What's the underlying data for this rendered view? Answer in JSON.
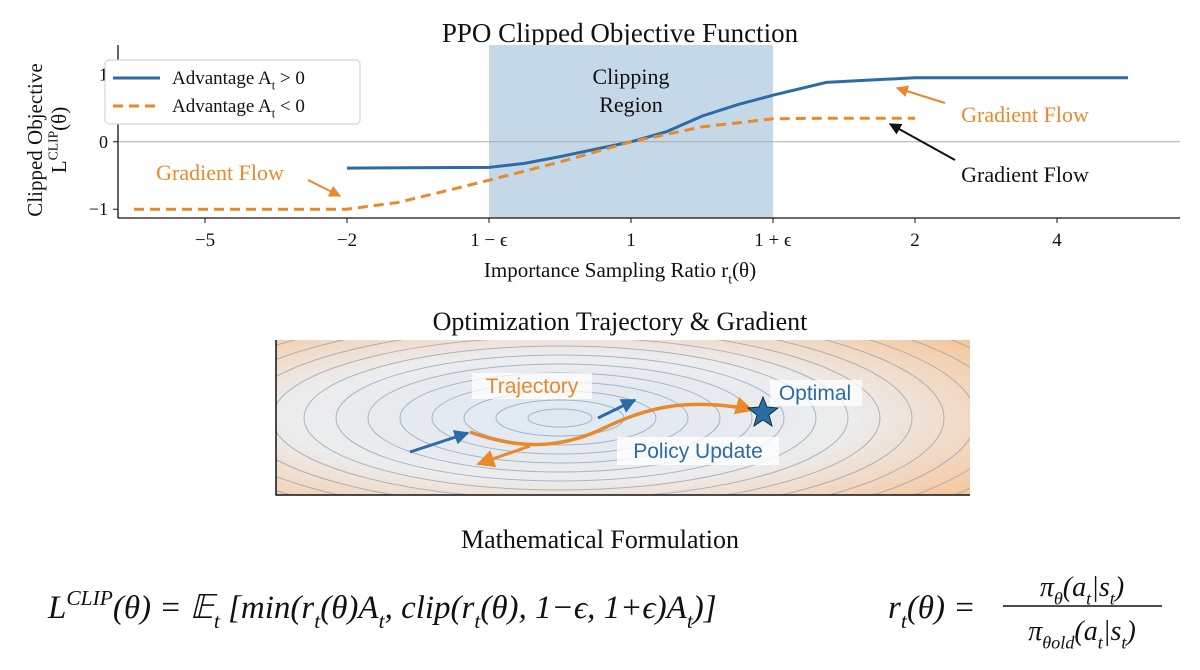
{
  "chart_data": {
    "type": "line",
    "title": "PPO Clipped Objective Function",
    "ylabel": [
      [
        {
          "text": "Clipped Objective"
        }
      ],
      [
        {
          "text": "L"
        },
        {
          "sup": "CLIP"
        },
        {
          "text": "(θ)"
        }
      ]
    ],
    "xlabel": [
      {
        "text": "Importance Sampling Ratio r"
      },
      {
        "sub": "t"
      },
      {
        "text": "(θ)"
      }
    ],
    "xlim": [
      -6.5,
      5
    ],
    "xticks": [
      {
        "value": -5,
        "label": "−5"
      },
      {
        "value": -2,
        "label": "−2"
      },
      {
        "value": 0.8,
        "label": "1 − ϵ"
      },
      1,
      {
        "value": 1.2,
        "label": "1 + ϵ"
      },
      2,
      4
    ],
    "ylim": [
      -1.13,
      1.39
    ],
    "yticks": [
      {
        "value": -1,
        "label": "−1"
      },
      0,
      1
    ],
    "axhline": 0,
    "shaded_region": {
      "xlim": [
        0.8,
        1.2
      ],
      "label": [
        "Clipping",
        "Region"
      ],
      "color": "#c5d8e8"
    },
    "legend": "upper left",
    "series": [
      {
        "name": [
          {
            "text": "Advantage A"
          },
          {
            "sub": "t"
          },
          {
            "text": " > 0"
          }
        ],
        "color": "#2b6ca6",
        "dash": false,
        "x": [
          -2,
          0.8,
          0.85,
          0.9,
          0.95,
          1,
          1.05,
          1.1,
          1.15,
          1.2,
          1.5,
          2,
          5
        ],
        "values": [
          -0.39,
          -0.38,
          -0.32,
          -0.22,
          -0.11,
          0,
          0.15,
          0.38,
          0.55,
          0.69,
          0.88,
          0.95,
          0.95
        ]
      },
      {
        "name": [
          {
            "text": "Advantage A"
          },
          {
            "sub": "t"
          },
          {
            "text": " < 0"
          }
        ],
        "color": "#e8892b",
        "dash": true,
        "x": [
          -6.5,
          -2,
          -1,
          0,
          0.8,
          0.9,
          1,
          1.1,
          1.2,
          1.5,
          2
        ],
        "values": [
          -1,
          -1,
          -0.9,
          -0.72,
          -0.57,
          -0.3,
          0,
          0.22,
          0.34,
          0.35,
          0.35
        ]
      }
    ],
    "annotations": [
      {
        "text": "Gradient Flow",
        "color": "#e8892b"
      },
      {
        "text": "Gradient Flow",
        "color": "#e8892b"
      },
      {
        "text": "Gradient Flow",
        "color": "#111111"
      }
    ]
  },
  "trajectory_panel": {
    "title": "Optimization Trajectory & Gradient",
    "trajectory": "Trajectory",
    "optimal": "Optimal",
    "policy_update": "Policy Update"
  },
  "formulation": {
    "title": "Mathematical Formulation",
    "objective": [
      {
        "text": "L"
      },
      {
        "sup": "CLIP"
      },
      {
        "text": "(θ) = 𝔼"
      },
      {
        "sub": "t"
      },
      {
        "text": " [min(r"
      },
      {
        "sub": "t"
      },
      {
        "text": "(θ)A"
      },
      {
        "sub": "t"
      },
      {
        "text": ", clip(r"
      },
      {
        "sub": "t"
      },
      {
        "text": "(θ), 1−ϵ, 1+ϵ)A"
      },
      {
        "sub": "t"
      },
      {
        "text": ")]"
      }
    ],
    "ratio_lhs": [
      {
        "text": "r"
      },
      {
        "sub": "t"
      },
      {
        "text": "(θ) ="
      }
    ],
    "ratio_numerator": [
      {
        "text": "π"
      },
      {
        "sub": "θ"
      },
      {
        "text": "(a"
      },
      {
        "sub": "t"
      },
      {
        "text": "|s"
      },
      {
        "sub": "t"
      },
      {
        "text": ")"
      }
    ],
    "ratio_denominator": [
      {
        "text": "π"
      },
      {
        "sub": "θold"
      },
      {
        "text": "(a"
      },
      {
        "sub": "t"
      },
      {
        "text": "|s"
      },
      {
        "sub": "t"
      },
      {
        "text": ")"
      }
    ]
  }
}
